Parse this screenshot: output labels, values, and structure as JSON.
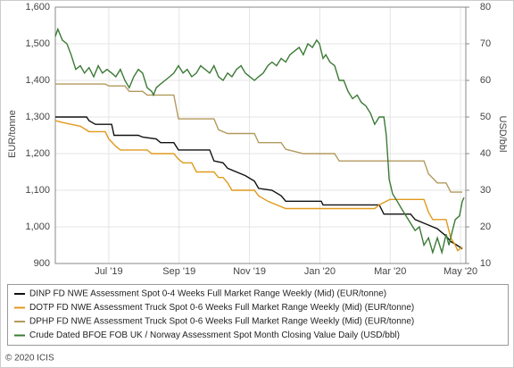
{
  "chart_data": {
    "type": "line",
    "y_label": "EUR/tonne",
    "y2_label": "USD/bbl",
    "footer": "© 2020 ICIS",
    "xlim": [
      5.48,
      17.15
    ],
    "xticks": [
      {
        "value": 7,
        "label": "Jul '19"
      },
      {
        "value": 9,
        "label": "Sep '19"
      },
      {
        "value": 11,
        "label": "Nov '19"
      },
      {
        "value": 13,
        "label": "Jan '20"
      },
      {
        "value": 15,
        "label": "Mar '20"
      },
      {
        "value": 17,
        "label": "May '20"
      }
    ],
    "ylim": [
      900,
      1600
    ],
    "yticks": [
      900,
      {
        "value": 1000,
        "label": "1,000"
      },
      {
        "value": 1100,
        "label": "1,100"
      },
      {
        "value": 1200,
        "label": "1,200"
      },
      {
        "value": 1300,
        "label": "1,300"
      },
      {
        "value": 1400,
        "label": "1,400"
      },
      {
        "value": 1500,
        "label": "1,500"
      },
      {
        "value": 1600,
        "label": "1,600"
      }
    ],
    "y2lim": [
      10,
      80
    ],
    "y2ticks": [
      10,
      20,
      30,
      40,
      50,
      60,
      70,
      80
    ],
    "grid": true,
    "series": [
      {
        "name": "DINP FD NWE Assessment Spot 0-4 Weeks Full Market Range Weekly (Mid) (EUR/tonne)",
        "color": "#111111",
        "x": [
          5.48,
          6.37,
          6.44,
          6.62,
          7.08,
          7.15,
          7.84,
          7.96,
          8.35,
          8.47,
          8.85,
          8.98,
          9.87,
          9.99,
          10.25,
          10.38,
          10.88,
          11.14,
          11.26,
          11.64,
          11.9,
          12.03,
          13.04,
          13.09,
          14.69,
          14.82,
          15.58,
          15.71,
          15.96,
          16.34,
          16.59,
          16.72,
          16.9,
          17.05
        ],
        "values": [
          1300,
          1300,
          1290,
          1280,
          1280,
          1250,
          1250,
          1245,
          1240,
          1230,
          1230,
          1210,
          1210,
          1180,
          1175,
          1160,
          1140,
          1125,
          1105,
          1100,
          1085,
          1070,
          1070,
          1060,
          1060,
          1035,
          1035,
          1020,
          1010,
          995,
          975,
          960,
          950,
          940
        ]
      },
      {
        "name": "DOTP FD NWE Assessment Truck Spot 0-6 Weeks Full Market Range Weekly (Mid) (EUR/tonne)",
        "color": "#e09a1c",
        "x": [
          5.48,
          5.68,
          5.93,
          6.19,
          6.44,
          6.9,
          7.0,
          7.2,
          7.33,
          8.09,
          8.22,
          8.85,
          8.98,
          9.11,
          9.36,
          9.49,
          9.99,
          10.12,
          10.25,
          10.38,
          10.5,
          11.14,
          11.26,
          11.52,
          12.03,
          14.56,
          14.69,
          14.99,
          15.96,
          16.09,
          16.21,
          16.59,
          16.72,
          16.85,
          16.92,
          17.05
        ],
        "values": [
          1290,
          1285,
          1280,
          1275,
          1260,
          1260,
          1240,
          1220,
          1210,
          1210,
          1200,
          1200,
          1185,
          1175,
          1175,
          1150,
          1150,
          1135,
          1135,
          1120,
          1100,
          1100,
          1085,
          1070,
          1050,
          1050,
          1060,
          1075,
          1075,
          1040,
          1020,
          1020,
          970,
          950,
          935,
          945
        ]
      },
      {
        "name": "DPHP FD NWE Assessment Truck Spot 0-6 Weeks Full Market Range Weekly (Mid) (EUR/tonne)",
        "color": "#b39a5e",
        "x": [
          5.48,
          6.9,
          7.0,
          7.46,
          7.58,
          7.96,
          8.09,
          8.85,
          8.98,
          9.99,
          10.12,
          10.38,
          11.14,
          11.26,
          11.9,
          12.03,
          12.53,
          13.42,
          13.55,
          15.96,
          16.09,
          16.34,
          16.59,
          16.72,
          17.05
        ],
        "values": [
          1390,
          1390,
          1385,
          1385,
          1370,
          1370,
          1360,
          1360,
          1295,
          1295,
          1265,
          1255,
          1255,
          1230,
          1230,
          1212,
          1200,
          1200,
          1180,
          1180,
          1145,
          1120,
          1120,
          1095,
          1095
        ]
      },
      {
        "name": "Crude Dated BFOE FOB UK / Norway Assessment Spot Month Closing Value Daily (USD/bbl)",
        "color": "#3b7a35",
        "axis": "y2",
        "x": [
          5.48,
          5.55,
          5.68,
          5.81,
          5.93,
          6.06,
          6.19,
          6.31,
          6.44,
          6.57,
          6.7,
          6.82,
          6.95,
          7.08,
          7.2,
          7.33,
          7.46,
          7.58,
          7.71,
          7.84,
          7.96,
          8.09,
          8.22,
          8.27,
          8.35,
          8.47,
          8.6,
          8.73,
          8.85,
          8.98,
          9.11,
          9.23,
          9.36,
          9.49,
          9.61,
          9.74,
          9.87,
          9.99,
          10.12,
          10.25,
          10.38,
          10.5,
          10.63,
          10.76,
          10.88,
          11.01,
          11.14,
          11.26,
          11.39,
          11.52,
          11.64,
          11.77,
          11.9,
          12.03,
          12.15,
          12.28,
          12.41,
          12.53,
          12.66,
          12.79,
          12.91,
          12.99,
          13.09,
          13.17,
          13.29,
          13.42,
          13.55,
          13.68,
          13.8,
          13.93,
          14.06,
          14.18,
          14.31,
          14.44,
          14.56,
          14.69,
          14.82,
          14.89,
          14.97,
          15.07,
          15.2,
          15.32,
          15.45,
          15.58,
          15.71,
          15.83,
          15.96,
          16.09,
          16.21,
          16.34,
          16.47,
          16.59,
          16.67,
          16.77,
          16.85,
          16.97,
          17.05,
          17.1
        ],
        "values": [
          72,
          74,
          71,
          70,
          67,
          63,
          64,
          62,
          63.5,
          61,
          64,
          62,
          63,
          62,
          61,
          63,
          60,
          58,
          61,
          63,
          62,
          58,
          57,
          56,
          58,
          59,
          60,
          61,
          62,
          64,
          62,
          63,
          61,
          62,
          64,
          63,
          62,
          64,
          61,
          60,
          62,
          61,
          63,
          64,
          62,
          61,
          60,
          61,
          62,
          64,
          65,
          64,
          66,
          65,
          67,
          68,
          69,
          67,
          70,
          69,
          71,
          70,
          66,
          67,
          65,
          64,
          60,
          60,
          57,
          55,
          56,
          54,
          53,
          51,
          48,
          50,
          50,
          45,
          33,
          29,
          27,
          25,
          23,
          21,
          19,
          20,
          15,
          17,
          13,
          17,
          13,
          18,
          15,
          19,
          22,
          23,
          27,
          28
        ]
      }
    ]
  }
}
